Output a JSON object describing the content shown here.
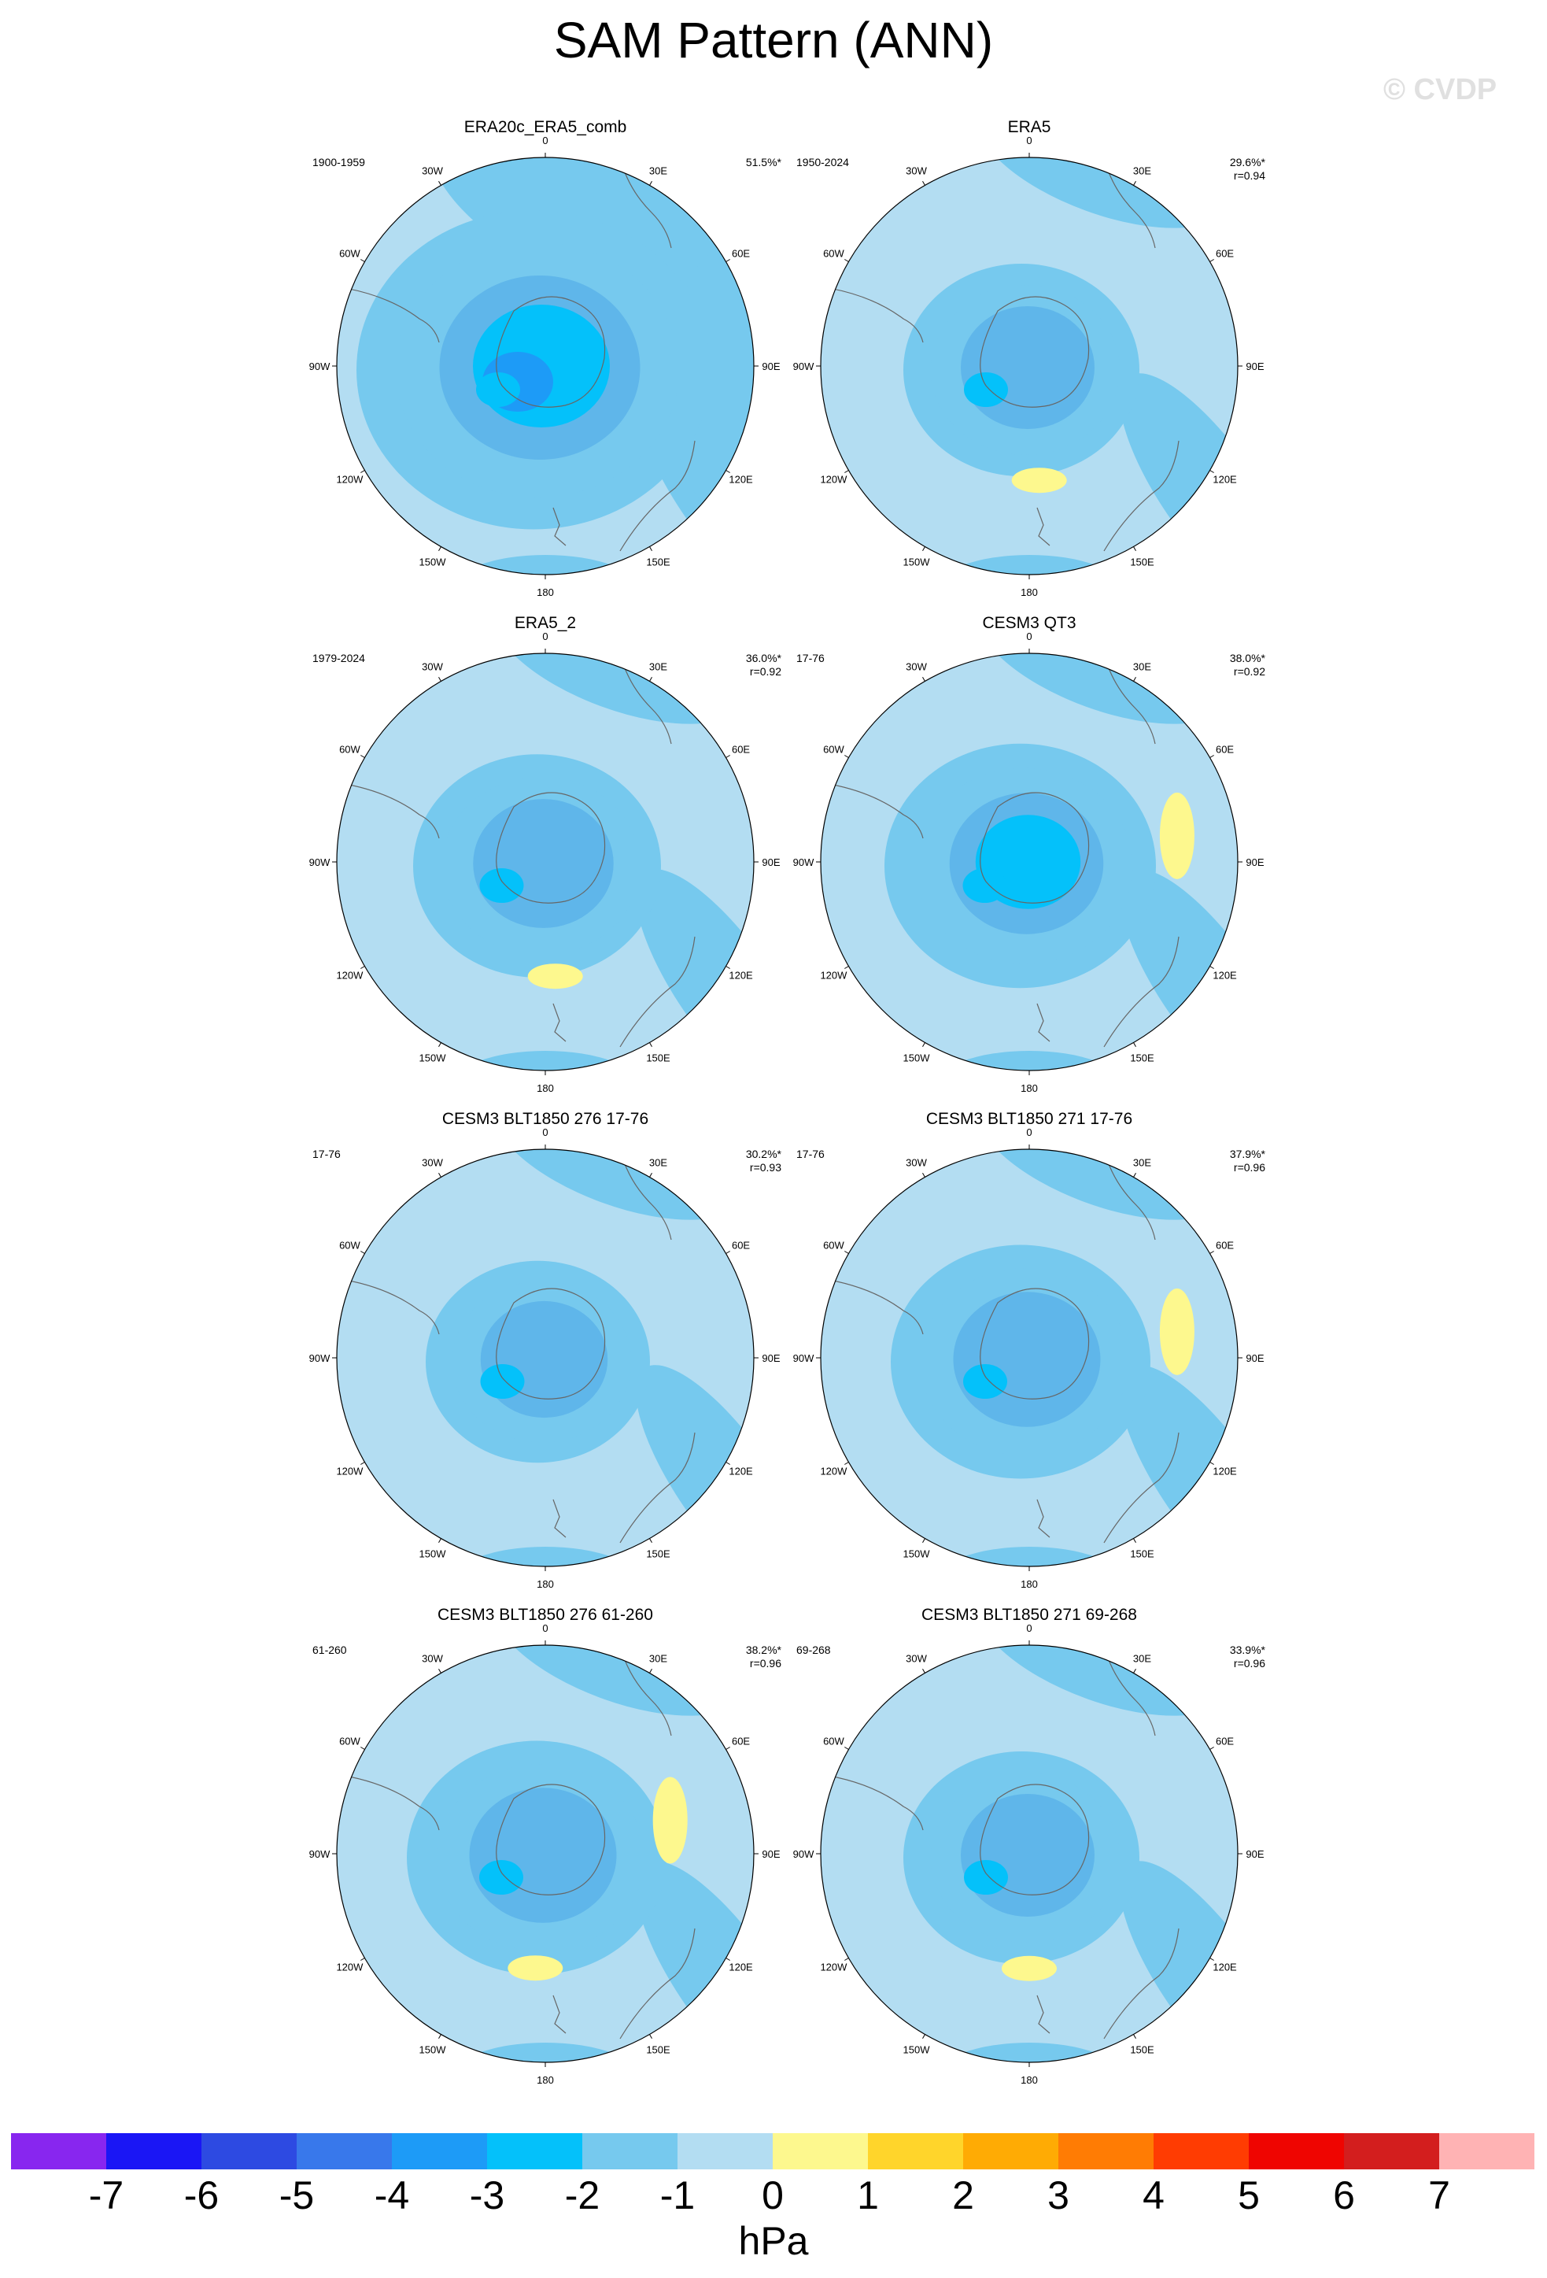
{
  "title": "SAM Pattern (ANN)",
  "watermark": "© CVDP",
  "lon_labels": [
    "0",
    "30E",
    "60E",
    "90E",
    "120E",
    "150E",
    "180",
    "150W",
    "120W",
    "90W",
    "60W",
    "30W"
  ],
  "panels": [
    {
      "title": "ERA20c_ERA5_comb",
      "period": "1900-1959",
      "pct_var": "51.5%*",
      "r": "",
      "strength": 1.5,
      "pos_lobes": []
    },
    {
      "title": "ERA5",
      "period": "1950-2024",
      "pct_var": "29.6%*",
      "r": "r=0.94",
      "strength": 1.0,
      "pos_lobes": [
        [
          175,
          0.55
        ]
      ]
    },
    {
      "title": "ERA5_2",
      "period": "1979-2024",
      "pct_var": "36.0%*",
      "r": "r=0.92",
      "strength": 1.05,
      "pos_lobes": [
        [
          175,
          0.55
        ]
      ]
    },
    {
      "title": "CESM3 QT3",
      "period": "17-76",
      "pct_var": "38.0%*",
      "r": "r=0.92",
      "strength": 1.15,
      "pos_lobes": [
        [
          80,
          0.72
        ]
      ]
    },
    {
      "title": "CESM3 BLT1850 276 17-76",
      "period": "17-76",
      "pct_var": "30.2%*",
      "r": "r=0.93",
      "strength": 0.95,
      "pos_lobes": []
    },
    {
      "title": "CESM3 BLT1850 271 17-76",
      "period": "17-76",
      "pct_var": "37.9%*",
      "r": "r=0.96",
      "strength": 1.1,
      "pos_lobes": [
        [
          80,
          0.72
        ]
      ]
    },
    {
      "title": "CESM3 BLT1850 276 61-260",
      "period": "61-260",
      "pct_var": "38.2%*",
      "r": "r=0.96",
      "strength": 1.1,
      "pos_lobes": [
        [
          75,
          0.62
        ],
        [
          185,
          0.55
        ]
      ]
    },
    {
      "title": "CESM3 BLT1850 271 69-268",
      "period": "69-268",
      "pct_var": "33.9%*",
      "r": "r=0.96",
      "strength": 1.0,
      "pos_lobes": [
        [
          180,
          0.55
        ]
      ]
    }
  ],
  "colorbar": {
    "colors": [
      "#8826ef",
      "#1a16f5",
      "#2d4ae2",
      "#3878eb",
      "#1d9bf7",
      "#04c1fa",
      "#76c9ee",
      "#b3ddf2",
      "#fdf88e",
      "#ffd52b",
      "#ffab04",
      "#ff7c04",
      "#ff3c02",
      "#ef0501",
      "#d31e1e",
      "#ffb3b4"
    ],
    "labels": [
      "-7",
      "-6",
      "-5",
      "-4",
      "-3",
      "-2",
      "-1",
      "0",
      "1",
      "2",
      "3",
      "4",
      "5",
      "6",
      "7"
    ],
    "unit": "hPa"
  }
}
